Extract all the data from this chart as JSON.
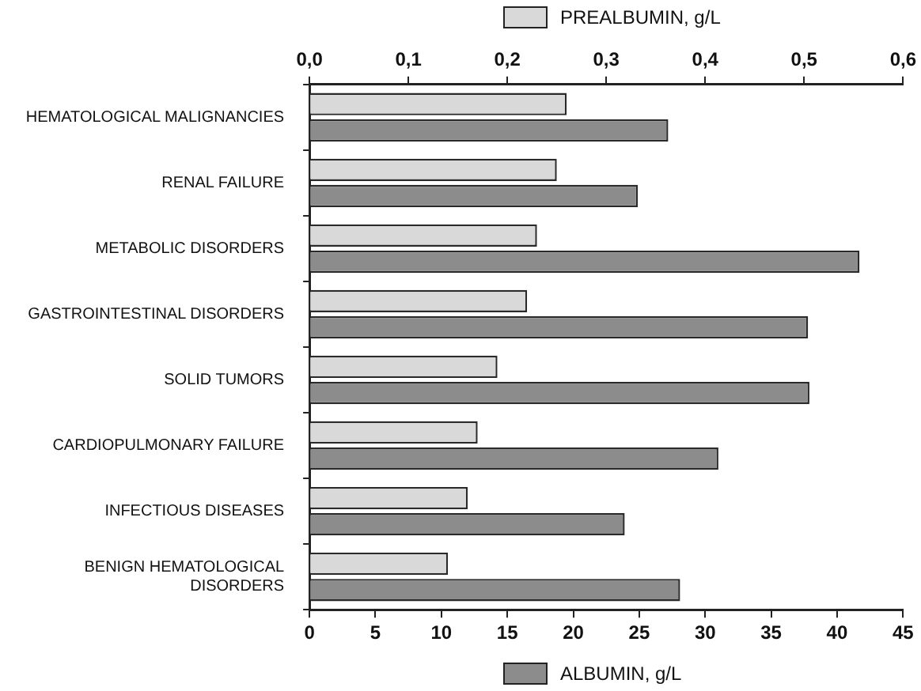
{
  "chart_data": {
    "type": "bar",
    "orientation": "horizontal",
    "categories": [
      "HEMATOLOGICAL MALIGNANCIES",
      "RENAL FAILURE",
      "METABOLIC DISORDERS",
      "GASTROINTESTINAL DISORDERS",
      "SOLID TUMORS",
      "CARDIOPULMONARY FAILURE",
      "INFECTIOUS DISEASES",
      "BENIGN HEMATOLOGICAL DISORDERS"
    ],
    "series": [
      {
        "name": "PREALBUMIN, g/L",
        "color": "#d9d9d9",
        "axis": "x2",
        "values": [
          0.26,
          0.25,
          0.23,
          0.22,
          0.19,
          0.17,
          0.16,
          0.14
        ]
      },
      {
        "name": "ALBUMIN, g/L",
        "color": "#8c8c8c",
        "values": [
          27.2,
          24.9,
          41.7,
          37.8,
          37.9,
          31.0,
          23.9,
          28.1
        ]
      }
    ],
    "xlim": [
      0,
      45
    ],
    "xticks": [
      0,
      5,
      10,
      15,
      20,
      25,
      30,
      35,
      40,
      45
    ],
    "x2lim": [
      0,
      0.6
    ],
    "x2ticks": [
      {
        "value": 0,
        "label": "0,0"
      },
      {
        "value": 0.1,
        "label": "0,1"
      },
      {
        "value": 0.2,
        "label": "0,2"
      },
      {
        "value": 0.3,
        "label": "0,3"
      },
      {
        "value": 0.4,
        "label": "0,4"
      },
      {
        "value": 0.5,
        "label": "0,5"
      },
      {
        "value": 0.6,
        "label": "0,6"
      }
    ],
    "grid": false,
    "legend": "top"
  }
}
